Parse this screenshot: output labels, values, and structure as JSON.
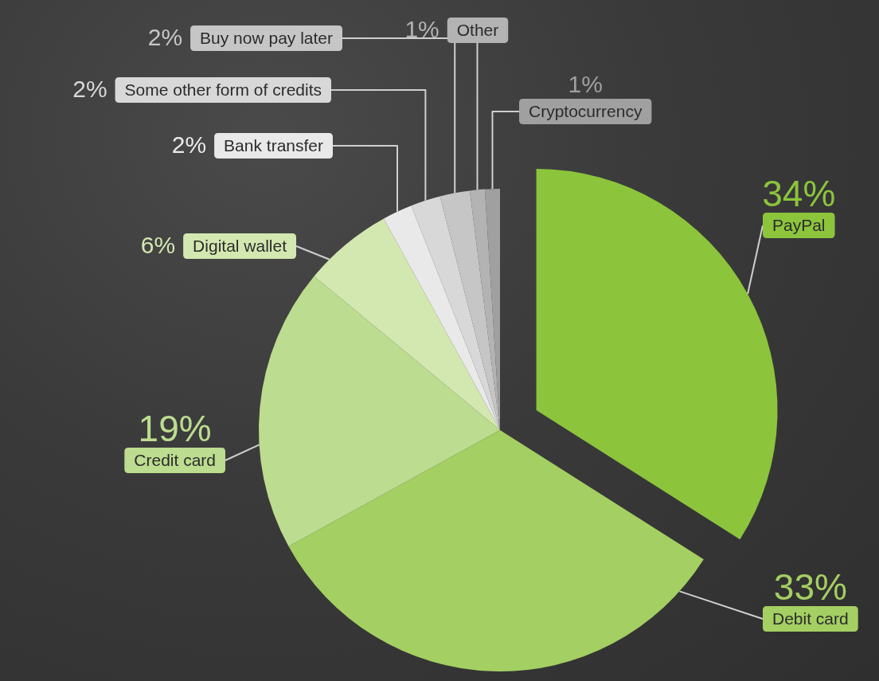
{
  "chart_data": {
    "type": "pie",
    "categories": [
      "PayPal",
      "Debit card",
      "Credit card",
      "Digital wallet",
      "Bank transfer",
      "Some other form of credits",
      "Buy now pay later",
      "Other",
      "Cryptocurrency"
    ],
    "values": [
      34,
      33,
      19,
      6,
      2,
      2,
      2,
      1,
      1
    ],
    "value_labels": [
      "34%",
      "33%",
      "19%",
      "6%",
      "2%",
      "2%",
      "2%",
      "1%",
      "1%"
    ],
    "colors": [
      "#8cc43c",
      "#a4cf62",
      "#bcdc8f",
      "#d3e8b0",
      "#e9e9e9",
      "#d8d8d8",
      "#c6c6c6",
      "#b3b3b3",
      "#a0a0a0"
    ],
    "data_labels": true
  }
}
